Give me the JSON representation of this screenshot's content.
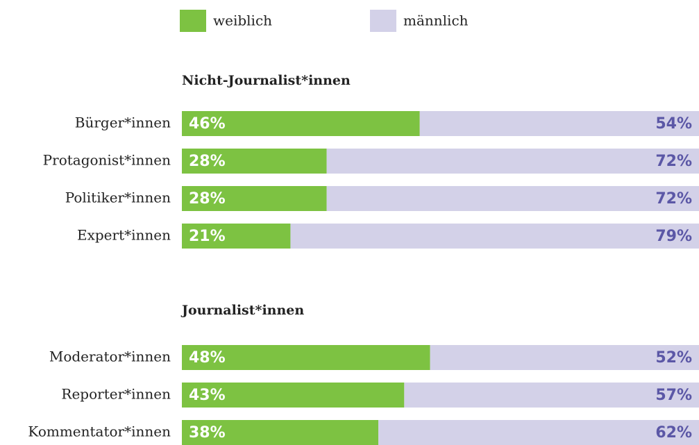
{
  "chart_data": [
    {
      "type": "bar",
      "orientation": "horizontal",
      "stacked": true,
      "title": "Nicht-Journalist*innen",
      "categories": [
        "Bürger*innen",
        "Protagonist*innen",
        "Politiker*innen",
        "Expert*innen"
      ],
      "xlim": [
        0,
        100
      ],
      "series": [
        {
          "name": "weiblich",
          "color": "#7dc242",
          "values": [
            46,
            28,
            28,
            21
          ],
          "value_labels": [
            "46%",
            "28%",
            "28%",
            "21%"
          ]
        },
        {
          "name": "männlich",
          "color": "#d3d1e8",
          "values": [
            54,
            72,
            72,
            79
          ],
          "value_labels": [
            "54%",
            "72%",
            "72%",
            "79%"
          ]
        }
      ]
    },
    {
      "type": "bar",
      "orientation": "horizontal",
      "stacked": true,
      "title": "Journalist*innen",
      "categories": [
        "Moderator*innen",
        "Reporter*innen",
        "Kommentator*innen"
      ],
      "xlim": [
        0,
        100
      ],
      "series": [
        {
          "color": "#7dc242",
          "values": [
            48,
            43,
            38
          ],
          "value_labels": [
            "48%",
            "43%",
            "38%"
          ]
        },
        {
          "color": "#d3d1e8",
          "values": [
            52,
            57,
            62
          ],
          "value_labels": [
            "52%",
            "57%",
            "62%"
          ]
        }
      ]
    }
  ]
}
